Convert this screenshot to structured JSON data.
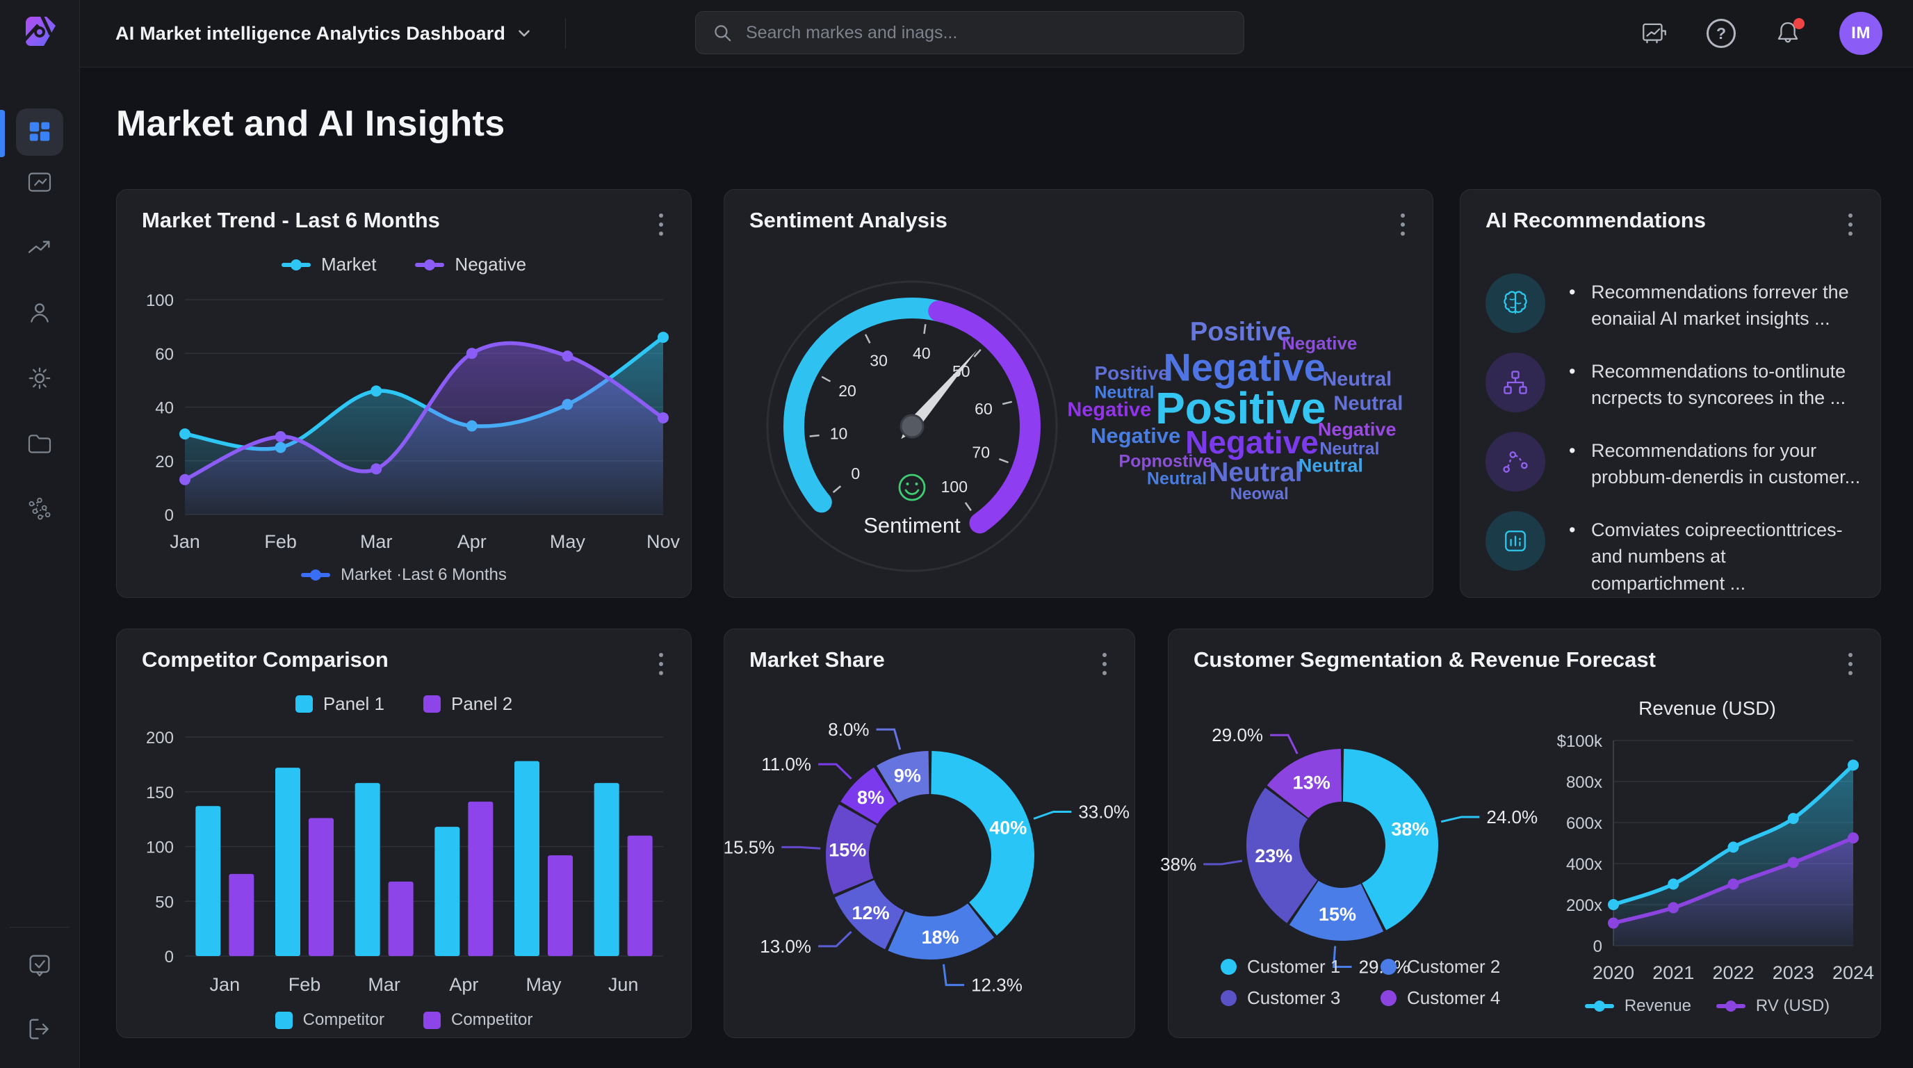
{
  "header": {
    "title": "AI Market intelligence Analytics Dashboard",
    "search_placeholder": "Search markes and inags...",
    "help_glyph": "?",
    "avatar_initials": "IM"
  },
  "page": {
    "title": "Market and AI Insights"
  },
  "cards": {
    "market_trend": {
      "title": "Market Trend - Last 6 Months"
    },
    "sentiment": {
      "title": "Sentiment Analysis",
      "gauge_label": "Sentiment"
    },
    "ai_recommendations": {
      "title": "AI Recommendations",
      "items": [
        {
          "icon": "brain-icon",
          "color": "#2cc8ee",
          "bg": "#1c3b49",
          "text": "Recommendations forrever the eonaiial AI market insights ..."
        },
        {
          "icon": "hierarchy-icon",
          "color": "#9161f2",
          "bg": "#312851",
          "text": "Recommendations to-ontlinute ncrpects to syncorees in the ..."
        },
        {
          "icon": "route-icon",
          "color": "#9161f2",
          "bg": "#312851",
          "text": "Recommendations for your probbum-denerdis in customer..."
        },
        {
          "icon": "chart-icon",
          "color": "#2cc8ee",
          "bg": "#1c3b49",
          "text": "Comviates coipreectionttrices-and numbens at compartichment ..."
        }
      ]
    },
    "competitor": {
      "title": "Competitor Comparison"
    },
    "market_share": {
      "title": "Market Share"
    },
    "customer": {
      "title": "Customer Segmentation & Revenue Forecast",
      "revenue_title": "Revenue (USD)"
    }
  },
  "chart_data": [
    {
      "id": "marketTrend",
      "type": "line",
      "title": "Market Trend - Last 6 Months",
      "x": [
        "Jan",
        "Feb",
        "Mar",
        "Apr",
        "May",
        "Nov"
      ],
      "y_ticks": [
        0,
        20,
        40,
        60,
        100
      ],
      "series": [
        {
          "name": "Market",
          "color": "#2ec6f5",
          "values": [
            30,
            25,
            46,
            33,
            41,
            72
          ]
        },
        {
          "name": "Negative",
          "color": "#8b5cf6",
          "values": [
            13,
            29,
            17,
            60,
            59,
            36
          ]
        }
      ],
      "legend": [
        {
          "label": "Market",
          "color": "#2ec6f5",
          "marker": "linedot"
        },
        {
          "label": "Negative",
          "color": "#8b5cf6",
          "marker": "linedot"
        }
      ],
      "footer_legend": [
        {
          "label": "Market ·Last 6 Months",
          "color": "#3b6ef6",
          "marker": "linedot"
        }
      ]
    },
    {
      "id": "sentimentGauge",
      "type": "gauge",
      "labels": [
        "0",
        "10",
        "20",
        "30",
        "40",
        "50",
        "60",
        "70",
        "100"
      ],
      "start_angle": 220,
      "end_angle": -55,
      "segments": [
        {
          "to": 0.52,
          "color": "#2fc1f0"
        },
        {
          "to": 1,
          "color": "#8e3df0"
        }
      ],
      "value_fraction": 0.62,
      "label": "Sentiment"
    },
    {
      "id": "wordCloud",
      "type": "wordcloud",
      "words": [
        {
          "t": "Positive",
          "x": 47,
          "y": 12,
          "s": 38,
          "c": "#6677dd"
        },
        {
          "t": "Negative",
          "x": 68,
          "y": 17,
          "s": 26,
          "c": "#8b4fd8"
        },
        {
          "t": "Negative",
          "x": 48,
          "y": 28,
          "s": 56,
          "c": "#4f74e3"
        },
        {
          "t": "Positive",
          "x": 18,
          "y": 31,
          "s": 28,
          "c": "#5f6fd6"
        },
        {
          "t": "Neutral",
          "x": 78,
          "y": 34,
          "s": 29,
          "c": "#6472d8"
        },
        {
          "t": "Neutral",
          "x": 16,
          "y": 40,
          "s": 25,
          "c": "#4a7de0"
        },
        {
          "t": "Negative",
          "x": 12,
          "y": 48,
          "s": 29,
          "c": "#9333ea"
        },
        {
          "t": "Positive",
          "x": 47,
          "y": 47,
          "s": 64,
          "c": "#35c5f2"
        },
        {
          "t": "Neutral",
          "x": 81,
          "y": 45,
          "s": 29,
          "c": "#6472d8"
        },
        {
          "t": "Negative",
          "x": 19,
          "y": 60,
          "s": 31,
          "c": "#4a7de0"
        },
        {
          "t": "Negative",
          "x": 50,
          "y": 63,
          "s": 46,
          "c": "#7c3aed"
        },
        {
          "t": "Negative",
          "x": 78,
          "y": 57,
          "s": 27,
          "c": "#9a4ae0"
        },
        {
          "t": "Neutral",
          "x": 76,
          "y": 66,
          "s": 25,
          "c": "#6472d8"
        },
        {
          "t": "Popnostive",
          "x": 27,
          "y": 72,
          "s": 25,
          "c": "#8b4fd8"
        },
        {
          "t": "Neutral",
          "x": 51,
          "y": 77,
          "s": 39,
          "c": "#5f6fd6"
        },
        {
          "t": "Neutral",
          "x": 30,
          "y": 80,
          "s": 25,
          "c": "#4a7de0"
        },
        {
          "t": "Neutral",
          "x": 71,
          "y": 74,
          "s": 27,
          "c": "#3fa4e8"
        },
        {
          "t": "Neowal",
          "x": 52,
          "y": 87,
          "s": 24,
          "c": "#6472d8"
        }
      ]
    },
    {
      "id": "competitorBar",
      "type": "bar",
      "x": [
        "Jan",
        "Feb",
        "Mar",
        "Apr",
        "May",
        "Jun"
      ],
      "y_ticks": [
        0,
        50,
        100,
        150,
        200
      ],
      "series": [
        {
          "name": "Competitor",
          "color": "#29c4f5",
          "values": [
            137,
            172,
            158,
            118,
            178,
            158
          ]
        },
        {
          "name": "Competitor",
          "color": "#8d44e8",
          "values": [
            75,
            126,
            68,
            141,
            92,
            110
          ]
        }
      ],
      "legend": [
        {
          "label": "Panel 1",
          "color": "#29c4f5",
          "marker": "square"
        },
        {
          "label": "Panel 2",
          "color": "#8d44e8",
          "marker": "square"
        }
      ],
      "footer_legend": [
        {
          "label": "Competitor",
          "color": "#29c4f5",
          "marker": "square"
        },
        {
          "label": "Competitor",
          "color": "#8d44e8",
          "marker": "square"
        }
      ]
    },
    {
      "id": "marketShareDonut",
      "type": "donut",
      "slices": [
        {
          "value": 40,
          "color": "#29c5f6",
          "label": "40%",
          "callout": "33.0%",
          "side": "right"
        },
        {
          "value": 18,
          "color": "#4a7de8",
          "label": "18%",
          "callout": "12.3%",
          "side": "right"
        },
        {
          "value": 12,
          "color": "#5a5fd8",
          "label": "12%",
          "callout": "13.0%",
          "side": "left"
        },
        {
          "value": 15,
          "color": "#6648cf",
          "label": "15%",
          "callout": "15.5%",
          "side": "left"
        },
        {
          "value": 8,
          "color": "#7c3aed",
          "label": "8%",
          "callout": "11.0%",
          "side": "left"
        },
        {
          "value": 9,
          "color": "#6674e0",
          "label": "9%",
          "callout": "8.0%",
          "side": "left"
        }
      ]
    },
    {
      "id": "customerDonut",
      "type": "donut",
      "slices": [
        {
          "value": 38,
          "color": "#29c5f6",
          "label": "38%",
          "callout": "24.0%",
          "side": "right"
        },
        {
          "value": 15,
          "color": "#4a7de8",
          "label": "15%",
          "callout": "29.8%",
          "side": "right"
        },
        {
          "value": 23,
          "color": "#5a52c7",
          "label": "23%",
          "callout": "38%",
          "side": "left"
        },
        {
          "value": 13,
          "color": "#8b44e0",
          "label": "13%",
          "callout": "29.0%",
          "side": "left"
        }
      ],
      "legend": [
        {
          "label": "Customer 1",
          "color": "#29c5f6",
          "marker": "dot"
        },
        {
          "label": "Customer 2",
          "color": "#4a7de8",
          "marker": "dot"
        },
        {
          "label": "Customer 3",
          "color": "#5a52c7",
          "marker": "dot"
        },
        {
          "label": "Customer 4",
          "color": "#8b44e0",
          "marker": "dot"
        }
      ]
    },
    {
      "id": "revenueLine",
      "type": "line",
      "title": "Revenue (USD)",
      "x": [
        "2020",
        "2021",
        "2022",
        "2023",
        "2024"
      ],
      "y_ticks": [
        0,
        200,
        400,
        600,
        800,
        1000
      ],
      "y_tick_labels": [
        "0",
        "200x",
        "400x",
        "600x",
        "800x",
        "$100k"
      ],
      "series": [
        {
          "name": "Revenue",
          "color": "#2ec6f5",
          "values": [
            200,
            300,
            480,
            620,
            880
          ]
        },
        {
          "name": "RV (USD)",
          "color": "#8b44e0",
          "values": [
            110,
            185,
            300,
            405,
            525
          ]
        }
      ],
      "footer_legend": [
        {
          "label": "Revenue",
          "color": "#2ec6f5",
          "marker": "linedot"
        },
        {
          "label": "RV (USD)",
          "color": "#8b44e0",
          "marker": "linedot"
        }
      ]
    }
  ]
}
